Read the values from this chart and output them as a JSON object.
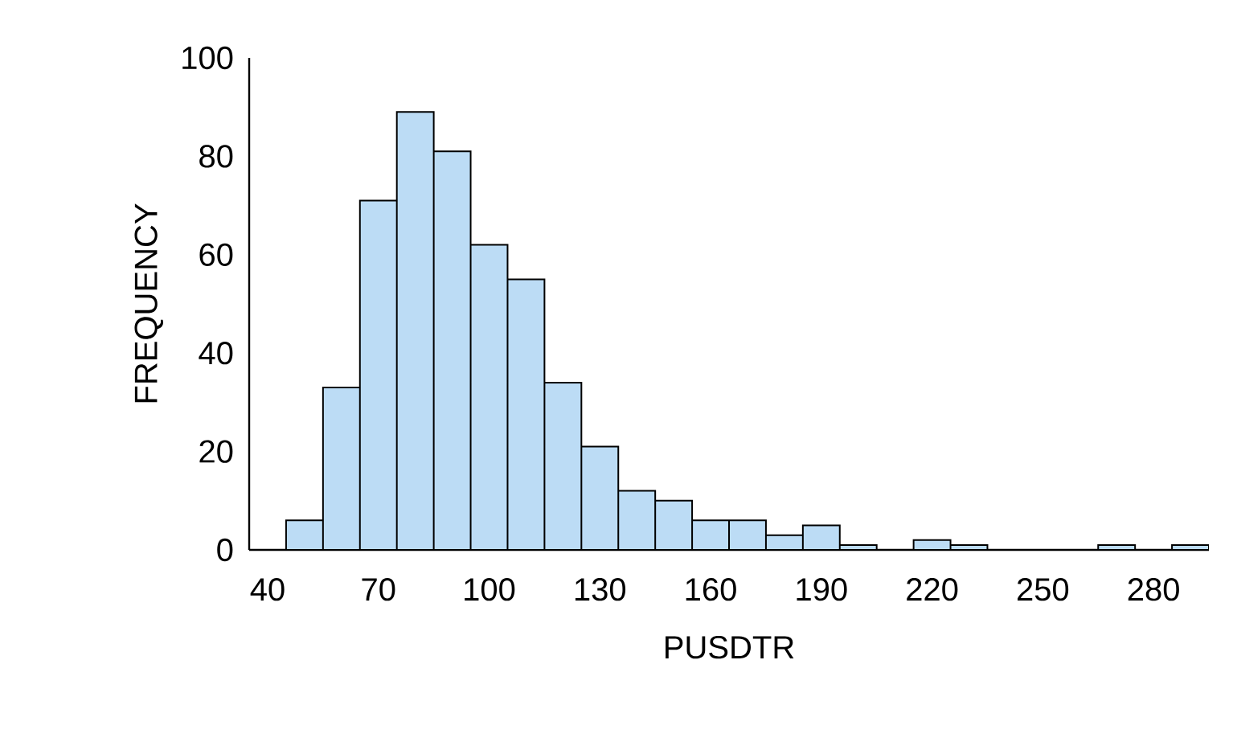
{
  "chart_data": {
    "type": "histogram",
    "xlabel": "PUSDTR",
    "ylabel": "FREQUENCY",
    "bins": [
      45,
      55,
      65,
      75,
      85,
      95,
      105,
      115,
      125,
      135,
      145,
      155,
      165,
      175,
      185,
      195,
      205,
      215,
      225,
      235,
      245,
      255,
      265,
      275,
      285,
      295
    ],
    "values": [
      6,
      33,
      71,
      89,
      81,
      62,
      55,
      34,
      21,
      12,
      10,
      6,
      6,
      3,
      5,
      1,
      0,
      2,
      1,
      0,
      0,
      0,
      1,
      0,
      1
    ],
    "color": "#bcdcf5",
    "xlim": [
      35,
      295
    ],
    "ylim": [
      0,
      100
    ],
    "xticks": [
      40,
      70,
      100,
      130,
      160,
      190,
      220,
      250,
      280
    ],
    "yticks": [
      0,
      20,
      40,
      60,
      80,
      100
    ],
    "grid": false
  }
}
